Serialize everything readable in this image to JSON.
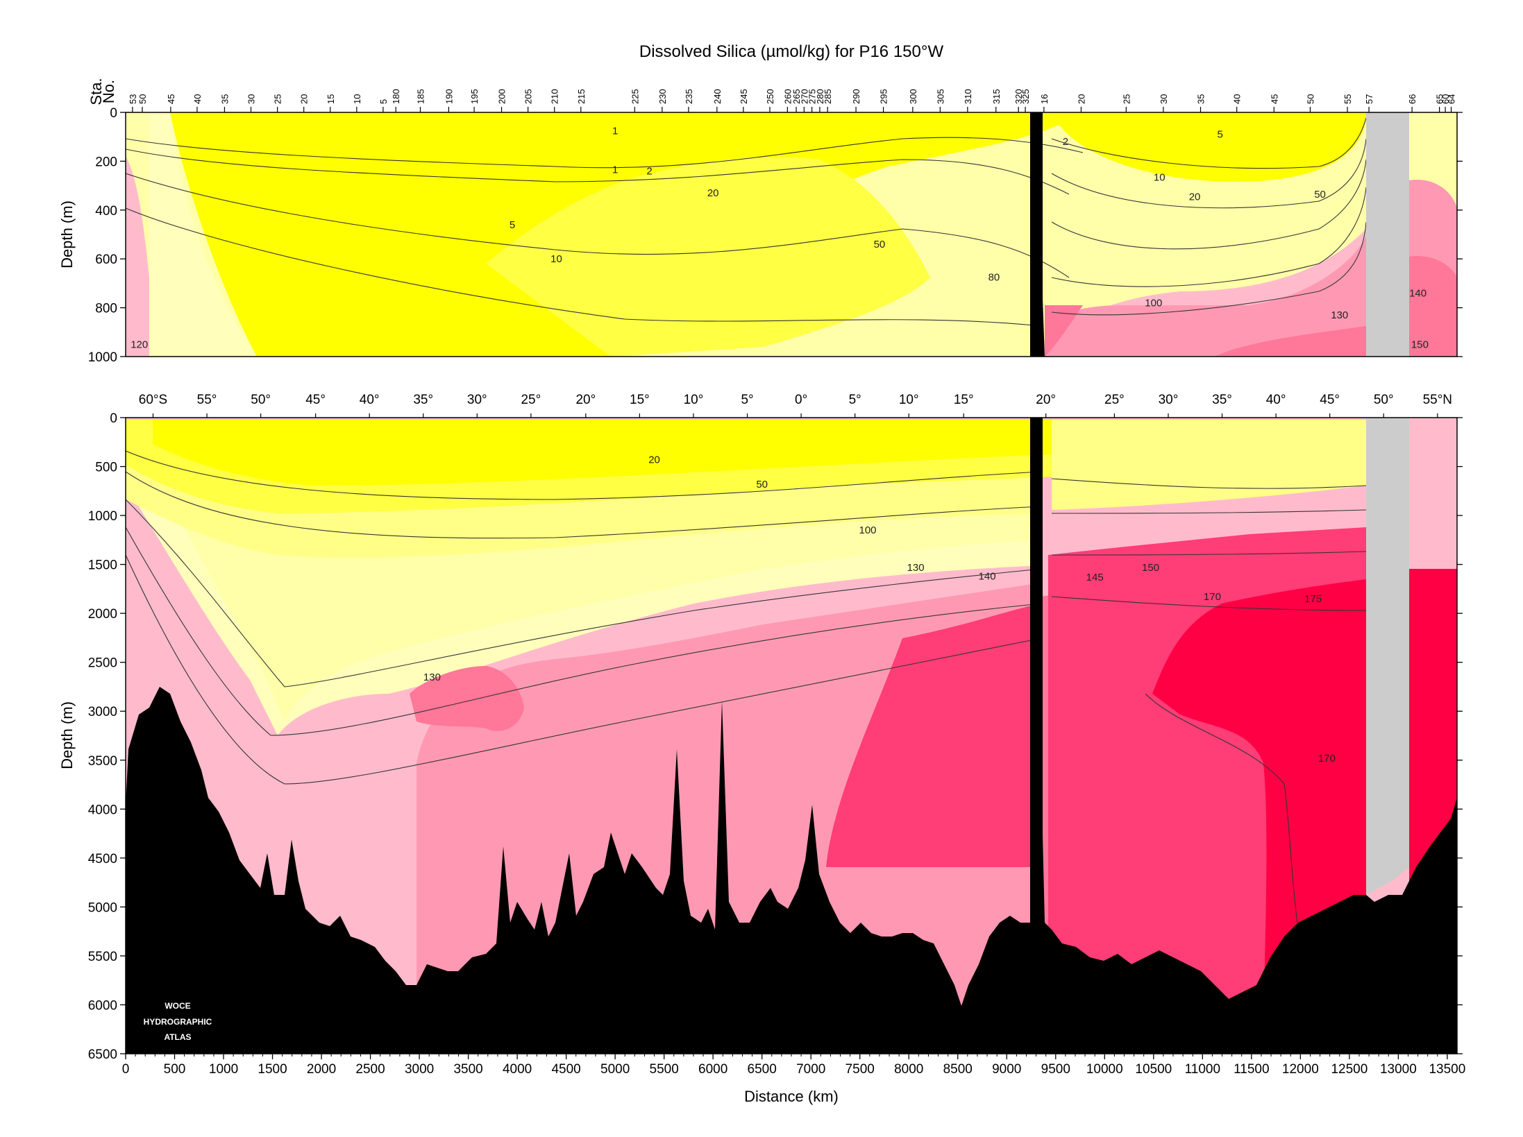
{
  "chart_data": [
    {
      "type": "heatmap",
      "title": "Dissolved Silica (µmol/kg) for P16 150°W",
      "panel": "upper",
      "ylabel": "Depth (m)",
      "xlim": [
        0,
        13600
      ],
      "ylim": [
        1000,
        0
      ],
      "yticks": [
        0,
        200,
        400,
        600,
        800,
        1000
      ],
      "station_axis_label": [
        "Sta.",
        "No."
      ],
      "station_labels": [
        {
          "x": 70,
          "label": "53"
        },
        {
          "x": 170,
          "label": "50"
        },
        {
          "x": 460,
          "label": "45"
        },
        {
          "x": 730,
          "label": "40"
        },
        {
          "x": 1010,
          "label": "35"
        },
        {
          "x": 1280,
          "label": "30"
        },
        {
          "x": 1550,
          "label": "25"
        },
        {
          "x": 1820,
          "label": "20"
        },
        {
          "x": 2090,
          "label": "15"
        },
        {
          "x": 2360,
          "label": "10"
        },
        {
          "x": 2630,
          "label": "5"
        },
        {
          "x": 2760,
          "label": "180"
        },
        {
          "x": 3010,
          "label": "185"
        },
        {
          "x": 3300,
          "label": "190"
        },
        {
          "x": 3560,
          "label": "195"
        },
        {
          "x": 3840,
          "label": "200"
        },
        {
          "x": 4110,
          "label": "205"
        },
        {
          "x": 4380,
          "label": "210"
        },
        {
          "x": 4650,
          "label": "215"
        },
        {
          "x": 5200,
          "label": "225"
        },
        {
          "x": 5480,
          "label": "230"
        },
        {
          "x": 5750,
          "label": "235"
        },
        {
          "x": 6040,
          "label": "240"
        },
        {
          "x": 6310,
          "label": "245"
        },
        {
          "x": 6580,
          "label": "250"
        },
        {
          "x": 6760,
          "label": "260"
        },
        {
          "x": 6850,
          "label": "265"
        },
        {
          "x": 6930,
          "label": "270"
        },
        {
          "x": 7010,
          "label": "275"
        },
        {
          "x": 7090,
          "label": "280"
        },
        {
          "x": 7170,
          "label": "285"
        },
        {
          "x": 7460,
          "label": "290"
        },
        {
          "x": 7740,
          "label": "295"
        },
        {
          "x": 8040,
          "label": "300"
        },
        {
          "x": 8320,
          "label": "305"
        },
        {
          "x": 8600,
          "label": "310"
        },
        {
          "x": 8890,
          "label": "315"
        },
        {
          "x": 9120,
          "label": "320"
        },
        {
          "x": 9190,
          "label": "325"
        },
        {
          "x": 9380,
          "label": "16"
        },
        {
          "x": 9760,
          "label": "20"
        },
        {
          "x": 10220,
          "label": "25"
        },
        {
          "x": 10600,
          "label": "30"
        },
        {
          "x": 10980,
          "label": "35"
        },
        {
          "x": 11350,
          "label": "40"
        },
        {
          "x": 11730,
          "label": "45"
        },
        {
          "x": 12100,
          "label": "50"
        },
        {
          "x": 12480,
          "label": "55"
        },
        {
          "x": 12700,
          "label": "57"
        },
        {
          "x": 13140,
          "label": "66"
        },
        {
          "x": 13420,
          "label": "65"
        },
        {
          "x": 13480,
          "label": "60"
        },
        {
          "x": 13540,
          "label": "64"
        }
      ],
      "contour_labels": [
        {
          "x": 140,
          "y": 950,
          "text": "120"
        },
        {
          "x": 3950,
          "y": 460,
          "text": "5"
        },
        {
          "x": 4400,
          "y": 600,
          "text": "10"
        },
        {
          "x": 5000,
          "y": 235,
          "text": "1"
        },
        {
          "x": 5000,
          "y": 75,
          "text": "1"
        },
        {
          "x": 5350,
          "y": 240,
          "text": "2"
        },
        {
          "x": 6000,
          "y": 330,
          "text": "20"
        },
        {
          "x": 7700,
          "y": 540,
          "text": "50"
        },
        {
          "x": 8870,
          "y": 675,
          "text": "80"
        },
        {
          "x": 9600,
          "y": 120,
          "text": "2"
        },
        {
          "x": 10560,
          "y": 265,
          "text": "10"
        },
        {
          "x": 10920,
          "y": 345,
          "text": "20"
        },
        {
          "x": 11180,
          "y": 90,
          "text": "5"
        },
        {
          "x": 12200,
          "y": 335,
          "text": "50"
        },
        {
          "x": 10500,
          "y": 780,
          "text": "100"
        },
        {
          "x": 12400,
          "y": 830,
          "text": "130"
        },
        {
          "x": 13200,
          "y": 740,
          "text": "140"
        },
        {
          "x": 13220,
          "y": 950,
          "text": "150"
        }
      ]
    },
    {
      "type": "heatmap",
      "panel": "lower",
      "xlabel": "Distance (km)",
      "ylabel": "Depth (m)",
      "xlim": [
        0,
        13600
      ],
      "ylim": [
        6500,
        0
      ],
      "xticks": [
        0,
        500,
        1000,
        1500,
        2000,
        2500,
        3000,
        3500,
        4000,
        4500,
        5000,
        5500,
        6000,
        6500,
        7000,
        7500,
        8000,
        8500,
        9000,
        9500,
        10000,
        10500,
        11000,
        11500,
        12000,
        12500,
        13000,
        13500
      ],
      "yticks": [
        0,
        500,
        1000,
        1500,
        2000,
        2500,
        3000,
        3500,
        4000,
        4500,
        5000,
        5500,
        6000,
        6500
      ],
      "latitude_labels": [
        {
          "x": 280,
          "label": "60°S"
        },
        {
          "x": 830,
          "label": "55°"
        },
        {
          "x": 1380,
          "label": "50°"
        },
        {
          "x": 1940,
          "label": "45°"
        },
        {
          "x": 2490,
          "label": "40°"
        },
        {
          "x": 3040,
          "label": "35°"
        },
        {
          "x": 3590,
          "label": "30°"
        },
        {
          "x": 4140,
          "label": "25°"
        },
        {
          "x": 4700,
          "label": "20°"
        },
        {
          "x": 5250,
          "label": "15°"
        },
        {
          "x": 5800,
          "label": "10°"
        },
        {
          "x": 6350,
          "label": "5°"
        },
        {
          "x": 6900,
          "label": "0°"
        },
        {
          "x": 7450,
          "label": "5°"
        },
        {
          "x": 8000,
          "label": "10°"
        },
        {
          "x": 8560,
          "label": "15°"
        },
        {
          "x": 9400,
          "label": "20°"
        },
        {
          "x": 10100,
          "label": "25°"
        },
        {
          "x": 10650,
          "label": "30°"
        },
        {
          "x": 11200,
          "label": "35°"
        },
        {
          "x": 11750,
          "label": "40°"
        },
        {
          "x": 12300,
          "label": "45°"
        },
        {
          "x": 12850,
          "label": "50°"
        },
        {
          "x": 13400,
          "label": "55°N"
        }
      ],
      "contour_labels": [
        {
          "x": 5400,
          "y": 430,
          "text": "20"
        },
        {
          "x": 6500,
          "y": 680,
          "text": "50"
        },
        {
          "x": 7580,
          "y": 1150,
          "text": "100"
        },
        {
          "x": 8070,
          "y": 1530,
          "text": "130"
        },
        {
          "x": 8800,
          "y": 1620,
          "text": "140"
        },
        {
          "x": 9900,
          "y": 1630,
          "text": "145"
        },
        {
          "x": 10470,
          "y": 1530,
          "text": "150"
        },
        {
          "x": 11100,
          "y": 1830,
          "text": "170"
        },
        {
          "x": 12130,
          "y": 1850,
          "text": "175"
        },
        {
          "x": 3130,
          "y": 2650,
          "text": "130"
        },
        {
          "x": 12270,
          "y": 3480,
          "text": "170"
        }
      ],
      "logo": [
        "WOCE",
        "HYDROGRAPHIC",
        "ATLAS"
      ]
    }
  ],
  "colors": {
    "lt1": "#ffff00",
    "lt10": "#ffff44",
    "lt40": "#ffff88",
    "lt80": "#ffffaa",
    "lt120": "#ffffbb",
    "lt130": "#ffbbcc",
    "lt140": "#ff99b3",
    "lt150": "#ff7799",
    "lt170": "#ff3d77",
    "ge170": "#ff0044",
    "bottom": "#000000",
    "nodata": "#cccccc"
  }
}
